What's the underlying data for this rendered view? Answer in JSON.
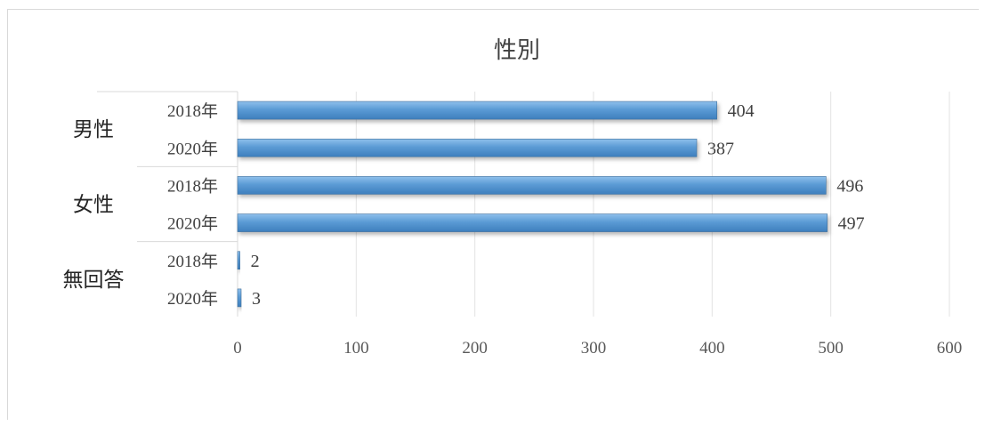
{
  "chart_data": {
    "type": "bar",
    "orientation": "horizontal",
    "title": "性別",
    "groups": [
      {
        "label": "男性",
        "items": [
          {
            "label": "2018年",
            "value": 404
          },
          {
            "label": "2020年",
            "value": 387
          }
        ]
      },
      {
        "label": "女性",
        "items": [
          {
            "label": "2018年",
            "value": 496
          },
          {
            "label": "2020年",
            "value": 497
          }
        ]
      },
      {
        "label": "無回答",
        "items": [
          {
            "label": "2018年",
            "value": 2
          },
          {
            "label": "2020年",
            "value": 3
          }
        ]
      }
    ],
    "xlim": [
      0,
      600
    ],
    "xticks": [
      "0",
      "100",
      "200",
      "300",
      "400",
      "500",
      "600"
    ],
    "grid": "vertical",
    "legend": "none",
    "bar_color": "#5b9bd5",
    "data_labels": true
  }
}
